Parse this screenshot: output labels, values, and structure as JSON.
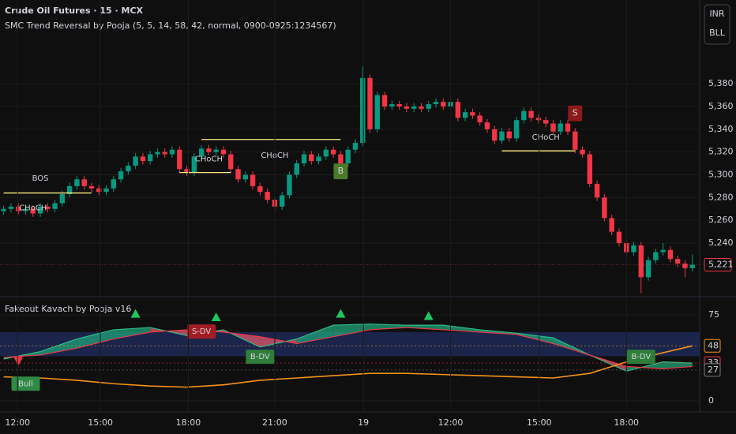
{
  "header": {
    "title": "Crude Oil Futures · 15 · MCX",
    "indicator": "SMC Trend Reversal by Pooja (5, 5, 14, 58, 42, normal, 0900-0925:1234567)",
    "buttons": [
      "INR",
      "BLL"
    ]
  },
  "chart_data": [
    {
      "type": "candlestick",
      "up_color": "#089981",
      "down_color": "#f23645",
      "xlim": [
        -0.5,
        95
      ],
      "xticks": [
        {
          "value": 1.9,
          "label": "12:00"
        },
        {
          "value": 13.2,
          "label": "15:00"
        },
        {
          "value": 25.2,
          "label": "18:00"
        },
        {
          "value": 37,
          "label": "21:00"
        },
        {
          "value": 49.1,
          "label": "19"
        },
        {
          "value": 61,
          "label": "12:00"
        },
        {
          "value": 73.1,
          "label": "15:00"
        },
        {
          "value": 85,
          "label": "18:00"
        }
      ],
      "ylim": [
        5193.6,
        5453.5
      ],
      "yticks": [
        {
          "value": 5240,
          "label": "5,240"
        },
        {
          "value": 5260,
          "label": "5,260"
        },
        {
          "value": 5280,
          "label": "5,280"
        },
        {
          "value": 5300,
          "label": "5,300"
        },
        {
          "value": 5320,
          "label": "5,320"
        },
        {
          "value": 5340,
          "label": "5,340"
        },
        {
          "value": 5360,
          "label": "5,360"
        },
        {
          "value": 5380,
          "label": "5,380"
        }
      ],
      "last_price": {
        "value": 5221,
        "label": "5,221"
      },
      "candles": [
        [
          5268,
          5273,
          5265,
          5270
        ],
        [
          5270,
          5275,
          5267,
          5272
        ],
        [
          5272,
          5275,
          5265,
          5268
        ],
        [
          5268,
          5273,
          5265,
          5270
        ],
        [
          5270,
          5273,
          5263,
          5266
        ],
        [
          5266,
          5275,
          5263,
          5272
        ],
        [
          5272,
          5275,
          5267,
          5270
        ],
        [
          5270,
          5278,
          5267,
          5275
        ],
        [
          5275,
          5286,
          5272,
          5283
        ],
        [
          5283,
          5293,
          5280,
          5290
        ],
        [
          5290,
          5299,
          5287,
          5296
        ],
        [
          5296,
          5299,
          5287,
          5290
        ],
        [
          5290,
          5293,
          5285,
          5288
        ],
        [
          5288,
          5291,
          5282,
          5285
        ],
        [
          5285,
          5291,
          5282,
          5288
        ],
        [
          5288,
          5299,
          5285,
          5296
        ],
        [
          5296,
          5306,
          5293,
          5303
        ],
        [
          5303,
          5311,
          5300,
          5308
        ],
        [
          5308,
          5319,
          5305,
          5316
        ],
        [
          5316,
          5319,
          5309,
          5312
        ],
        [
          5312,
          5321,
          5309,
          5318
        ],
        [
          5318,
          5323,
          5315,
          5320
        ],
        [
          5320,
          5323,
          5315,
          5318
        ],
        [
          5318,
          5325,
          5315,
          5322
        ],
        [
          5322,
          5325,
          5302,
          5305
        ],
        [
          5305,
          5308,
          5299,
          5302
        ],
        [
          5302,
          5319,
          5299,
          5316
        ],
        [
          5316,
          5326,
          5313,
          5323
        ],
        [
          5323,
          5326,
          5317,
          5320
        ],
        [
          5320,
          5325,
          5317,
          5322
        ],
        [
          5322,
          5325,
          5315,
          5318
        ],
        [
          5318,
          5321,
          5302,
          5305
        ],
        [
          5305,
          5308,
          5293,
          5296
        ],
        [
          5296,
          5303,
          5293,
          5300
        ],
        [
          5300,
          5303,
          5287,
          5290
        ],
        [
          5290,
          5293,
          5282,
          5285
        ],
        [
          5285,
          5288,
          5275,
          5278
        ],
        [
          5278,
          5281,
          5267,
          5272
        ],
        [
          5272,
          5285,
          5269,
          5282
        ],
        [
          5282,
          5303,
          5279,
          5300
        ],
        [
          5300,
          5313,
          5297,
          5310
        ],
        [
          5310,
          5321,
          5307,
          5318
        ],
        [
          5318,
          5321,
          5309,
          5312
        ],
        [
          5312,
          5319,
          5309,
          5316
        ],
        [
          5316,
          5325,
          5313,
          5322
        ],
        [
          5322,
          5325,
          5315,
          5318
        ],
        [
          5318,
          5321,
          5307,
          5310
        ],
        [
          5310,
          5325,
          5307,
          5322
        ],
        [
          5322,
          5331,
          5319,
          5328
        ],
        [
          5328,
          5395,
          5325,
          5385
        ],
        [
          5385,
          5388,
          5337,
          5340
        ],
        [
          5340,
          5373,
          5337,
          5370
        ],
        [
          5370,
          5373,
          5357,
          5360
        ],
        [
          5360,
          5365,
          5357,
          5362
        ],
        [
          5362,
          5365,
          5357,
          5360
        ],
        [
          5360,
          5363,
          5355,
          5358
        ],
        [
          5358,
          5363,
          5355,
          5360
        ],
        [
          5360,
          5363,
          5355,
          5358
        ],
        [
          5358,
          5365,
          5355,
          5362
        ],
        [
          5362,
          5367,
          5359,
          5364
        ],
        [
          5364,
          5367,
          5357,
          5360
        ],
        [
          5360,
          5367,
          5357,
          5364
        ],
        [
          5364,
          5367,
          5347,
          5350
        ],
        [
          5350,
          5358,
          5347,
          5355
        ],
        [
          5355,
          5358,
          5349,
          5352
        ],
        [
          5352,
          5355,
          5343,
          5346
        ],
        [
          5346,
          5349,
          5337,
          5340
        ],
        [
          5340,
          5343,
          5327,
          5330
        ],
        [
          5330,
          5341,
          5327,
          5338
        ],
        [
          5338,
          5341,
          5329,
          5332
        ],
        [
          5332,
          5351,
          5329,
          5348
        ],
        [
          5348,
          5359,
          5345,
          5356
        ],
        [
          5356,
          5359,
          5347,
          5350
        ],
        [
          5350,
          5353,
          5345,
          5348
        ],
        [
          5348,
          5351,
          5342,
          5345
        ],
        [
          5345,
          5348,
          5335,
          5338
        ],
        [
          5338,
          5348,
          5335,
          5345
        ],
        [
          5345,
          5348,
          5335,
          5338
        ],
        [
          5338,
          5341,
          5319,
          5322
        ],
        [
          5322,
          5325,
          5315,
          5318
        ],
        [
          5318,
          5321,
          5289,
          5292
        ],
        [
          5292,
          5295,
          5277,
          5280
        ],
        [
          5280,
          5283,
          5259,
          5262
        ],
        [
          5262,
          5265,
          5247,
          5250
        ],
        [
          5250,
          5253,
          5237,
          5240
        ],
        [
          5240,
          5243,
          5229,
          5232
        ],
        [
          5232,
          5241,
          5229,
          5238
        ],
        [
          5238,
          5241,
          5196,
          5210
        ],
        [
          5210,
          5228,
          5207,
          5225
        ],
        [
          5225,
          5235,
          5222,
          5232
        ],
        [
          5232,
          5240,
          5229,
          5234
        ],
        [
          5234,
          5237,
          5223,
          5226
        ],
        [
          5226,
          5229,
          5219,
          5222
        ],
        [
          5222,
          5225,
          5210,
          5218
        ],
        [
          5218,
          5230,
          5215,
          5221
        ]
      ],
      "levels": [
        {
          "from": 0,
          "to": 12,
          "price": 5284
        },
        {
          "from": 24,
          "to": 31,
          "price": 5302
        },
        {
          "from": 27,
          "to": 46,
          "price": 5331
        },
        {
          "from": 68,
          "to": 78,
          "price": 5321
        }
      ],
      "annotations": [
        {
          "text": "BOS",
          "index": 5,
          "price": 5297
        },
        {
          "text": "CHoCH",
          "index": 4,
          "price": 5271
        },
        {
          "text": "CHoCH",
          "index": 28,
          "price": 5314
        },
        {
          "text": "CHoCH",
          "index": 37,
          "price": 5317
        },
        {
          "text": "CHoCH",
          "index": 74,
          "price": 5333
        }
      ],
      "signals": [
        {
          "text": "B",
          "index": 46,
          "price": 5303,
          "color": "#4a7a2a"
        },
        {
          "text": "S",
          "index": 78,
          "price": 5354,
          "color": "#8b1a1a"
        }
      ]
    },
    {
      "type": "oscillator",
      "title": "Fakeout Kavach by Pooja v16",
      "ylim": [
        -9.6,
        89.5
      ],
      "yticks": [
        0,
        75
      ],
      "zone": [
        39,
        60
      ],
      "x": [
        0,
        5,
        10,
        15,
        20,
        25,
        30,
        35,
        40,
        45,
        50,
        55,
        60,
        65,
        70,
        75,
        80,
        85,
        90,
        94
      ],
      "series": [
        {
          "name": "fast",
          "color": "#2ebd85",
          "values": [
            36.5,
            43,
            54,
            62,
            64,
            57,
            62,
            47,
            54,
            66,
            67,
            66,
            66,
            62,
            59,
            55,
            40,
            26,
            34,
            33
          ]
        },
        {
          "name": "slow",
          "color": "#f23645",
          "values": [
            38,
            40,
            46,
            54,
            60,
            62,
            60,
            56,
            50,
            56,
            62,
            64,
            62,
            60,
            58,
            50,
            40,
            30,
            28,
            30
          ]
        },
        {
          "name": "trend",
          "color": "#f7931a",
          "values": [
            21,
            20,
            18,
            15,
            13,
            12,
            14,
            18,
            20,
            22,
            24,
            24,
            23,
            22,
            21,
            20,
            24,
            34,
            42,
            48
          ]
        }
      ],
      "last_labels": [
        {
          "value": 48,
          "color": "#f7931a"
        },
        {
          "value": 33,
          "color": "#f23645"
        },
        {
          "value": 27,
          "color": "#787b86"
        }
      ],
      "markers": [
        {
          "text": "Bull",
          "index": 3,
          "value": 15,
          "color": "#2e8b45"
        },
        {
          "text": "S-DV",
          "index": 27,
          "value": 60.5,
          "color": "#a31c24"
        },
        {
          "text": "B-DV",
          "index": 35,
          "value": 38.5,
          "color": "#2e7d3a"
        },
        {
          "text": "B-DV",
          "index": 87,
          "value": 38.5,
          "color": "#2e7d3a"
        }
      ],
      "triangles": [
        {
          "index": 2,
          "value": 35,
          "dir": "down",
          "color": "#f23645"
        },
        {
          "index": 18,
          "value": 76,
          "dir": "up",
          "color": "#22c55e"
        },
        {
          "index": 29,
          "value": 73,
          "dir": "up",
          "color": "#22c55e"
        },
        {
          "index": 46,
          "value": 76,
          "dir": "up",
          "color": "#22c55e"
        },
        {
          "index": 58,
          "value": 74,
          "dir": "up",
          "color": "#22c55e"
        }
      ]
    }
  ]
}
